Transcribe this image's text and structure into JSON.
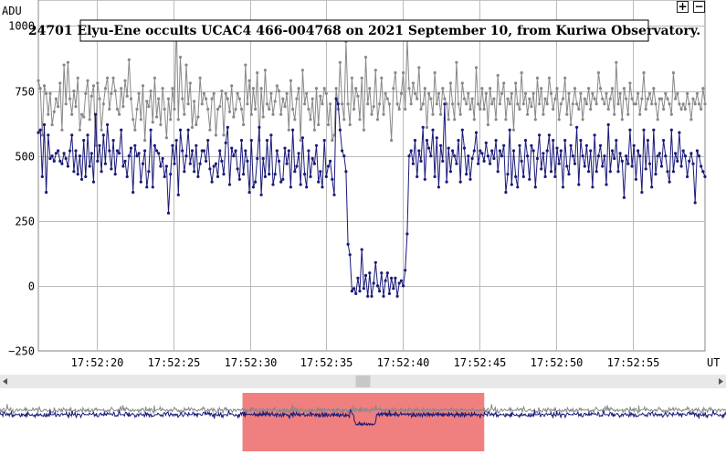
{
  "header": {
    "y_unit": "ADU",
    "x_unit": "UT",
    "zoom_in_label": "+",
    "zoom_out_label": "−"
  },
  "chart_data": {
    "type": "line",
    "title": "24701 Elyu-Ene occults UCAC4 466-004768 on 2021 September 10, from Kuriwa Observatory.",
    "xlabel": "UT",
    "ylabel": "ADU",
    "ylim": [
      -250,
      1100
    ],
    "xlim": [
      "17:52:16.2",
      "17:52:59.7"
    ],
    "y_ticks": [
      "1000",
      "750",
      "500",
      "250",
      "0",
      "−250"
    ],
    "y_tick_values": [
      1000,
      750,
      500,
      250,
      0,
      -250
    ],
    "x_ticks": [
      "17:52:20",
      "17:52:25",
      "17:52:30",
      "17:52:35",
      "17:52:40",
      "17:52:45",
      "17:52:50",
      "17:52:55"
    ],
    "x_tick_seconds": [
      20,
      25,
      30,
      35,
      40,
      45,
      50,
      55
    ],
    "grid": true,
    "sample_interval_s": 0.133,
    "series": [
      {
        "color": "#1a1a7a",
        "values": [
          590,
          600,
          420,
          620,
          360,
          580,
          490,
          500,
          480,
          510,
          520,
          480,
          470,
          510,
          490,
          460,
          520,
          580,
          440,
          520,
          430,
          500,
          410,
          560,
          420,
          580,
          460,
          510,
          400,
          660,
          480,
          540,
          440,
          580,
          470,
          620,
          520,
          450,
          560,
          430,
          520,
          510,
          600,
          460,
          480,
          420,
          500,
          530,
          360,
          540,
          500,
          510,
          400,
          470,
          520,
          380,
          440,
          600,
          380,
          540,
          520,
          510,
          460,
          490,
          420,
          460,
          280,
          430,
          540,
          470,
          560,
          350,
          600,
          520,
          440,
          500,
          600,
          470,
          520,
          440,
          540,
          420,
          470,
          520,
          520,
          480,
          560,
          450,
          400,
          460,
          470,
          420,
          520,
          480,
          430,
          550,
          610,
          390,
          530,
          500,
          520,
          450,
          410,
          560,
          430,
          520,
          480,
          360,
          560,
          380,
          400,
          490,
          610,
          350,
          490,
          420,
          560,
          430,
          580,
          390,
          430,
          520,
          480,
          400,
          410,
          530,
          470,
          520,
          380,
          600,
          440,
          460,
          510,
          390,
          570,
          430,
          380,
          520,
          420,
          490,
          470,
          540,
          400,
          440,
          380,
          560,
          420,
          460,
          480,
          410,
          350,
          720,
          700,
          600,
          520,
          500,
          440,
          160,
          120,
          -20,
          -10,
          -30,
          30,
          -20,
          140,
          -10,
          40,
          -40,
          50,
          -40,
          10,
          90,
          0,
          -20,
          50,
          -40,
          20,
          50,
          -30,
          30,
          -10,
          30,
          -40,
          10,
          20,
          0,
          60,
          200,
          500,
          520,
          470,
          560,
          420,
          520,
          480,
          610,
          410,
          560,
          530,
          500,
          600,
          420,
          570,
          380,
          540,
          480,
          700,
          400,
          530,
          440,
          520,
          500,
          470,
          560,
          400,
          600,
          530,
          430,
          500,
          410,
          490,
          520,
          590,
          470,
          520,
          510,
          480,
          550,
          500,
          470,
          520,
          490,
          560,
          440,
          520,
          500,
          540,
          360,
          430,
          600,
          390,
          520,
          420,
          380,
          540,
          480,
          420,
          560,
          500,
          410,
          540,
          520,
          380,
          490,
          580,
          450,
          510,
          420,
          520,
          580,
          440,
          560,
          420,
          530,
          470,
          520,
          380,
          560,
          460,
          430,
          540,
          500,
          470,
          610,
          390,
          560,
          500,
          460,
          540,
          440,
          520,
          380,
          580,
          440,
          500,
          540,
          460,
          500,
          390,
          620,
          440,
          520,
          490,
          560,
          440,
          510,
          480,
          340,
          500,
          470,
          600,
          460,
          540,
          410,
          520,
          500,
          360,
          600,
          450,
          560,
          470,
          380,
          600,
          430,
          500,
          510,
          460,
          560,
          500,
          440,
          400,
          600,
          440,
          510,
          480,
          590,
          460,
          520,
          500,
          420,
          480,
          510,
          470,
          320,
          520,
          500,
          460,
          440,
          420
        ]
      },
      {
        "color": "#888888",
        "values": [
          790,
          760,
          580,
          770,
          740,
          660,
          740,
          620,
          670,
          720,
          690,
          780,
          600,
          850,
          700,
          860,
          720,
          660,
          750,
          690,
          800,
          600,
          660,
          650,
          740,
          790,
          640,
          730,
          770,
          540,
          780,
          720,
          600,
          700,
          760,
          800,
          680,
          740,
          800,
          750,
          680,
          660,
          760,
          690,
          790,
          730,
          870,
          720,
          640,
          600,
          680,
          740,
          640,
          770,
          560,
          710,
          690,
          750,
          630,
          800,
          650,
          720,
          620,
          760,
          680,
          570,
          720,
          640,
          760,
          680,
          1010,
          640,
          880,
          720,
          660,
          850,
          700,
          780,
          610,
          710,
          620,
          650,
          800,
          700,
          740,
          720,
          680,
          600,
          720,
          740,
          580,
          680,
          690,
          750,
          580,
          740,
          720,
          670,
          770,
          650,
          680,
          740,
          720,
          680,
          620,
          850,
          700,
          790,
          660,
          760,
          680,
          820,
          560,
          760,
          650,
          830,
          700,
          680,
          740,
          660,
          710,
          770,
          750,
          660,
          720,
          690,
          740,
          600,
          790,
          680,
          640,
          720,
          760,
          560,
          830,
          700,
          740,
          680,
          640,
          720,
          600,
          760,
          620,
          730,
          700,
          760,
          740,
          620,
          700,
          560,
          580,
          760,
          680,
          860,
          700,
          640,
          940,
          700,
          620,
          800,
          680,
          760,
          730,
          640,
          800,
          600,
          880,
          700,
          760,
          660,
          690,
          830,
          640,
          700,
          800,
          660,
          740,
          720,
          700,
          560,
          760,
          820,
          700,
          680,
          740,
          820,
          680,
          950,
          760,
          700,
          780,
          740,
          720,
          840,
          680,
          700,
          760,
          610,
          740,
          720,
          660,
          820,
          700,
          740,
          660,
          760,
          720,
          700,
          640,
          780,
          700,
          640,
          860,
          700,
          660,
          780,
          720,
          700,
          740,
          680,
          720,
          640,
          840,
          700,
          680,
          760,
          680,
          740,
          620,
          760,
          700,
          720,
          640,
          810,
          700,
          740,
          780,
          640,
          720,
          700,
          740,
          600,
          780,
          700,
          680,
          820,
          700,
          740,
          660,
          720,
          690,
          740,
          640,
          800,
          700,
          760,
          660,
          720,
          700,
          800,
          740,
          680,
          720,
          760,
          640,
          700,
          720,
          800,
          660,
          740,
          620,
          700,
          760,
          700,
          680,
          740,
          640,
          720,
          700,
          760,
          680,
          740,
          720,
          700,
          820,
          760,
          720,
          700,
          740,
          680,
          720,
          760,
          660,
          860,
          700,
          740,
          640,
          760,
          720,
          660,
          780,
          720,
          700,
          700,
          740,
          660,
          720,
          820,
          680,
          720,
          740,
          700,
          760,
          700,
          640,
          720,
          720,
          680,
          740,
          720,
          700,
          660,
          820,
          720,
          740,
          700,
          680,
          700,
          680,
          740,
          700,
          640,
          720,
          700,
          740,
          700,
          680,
          760,
          700
        ]
      }
    ]
  },
  "navigator": {
    "selection_fraction": [
      0.334,
      0.667
    ],
    "scroll_position": 0.5
  }
}
